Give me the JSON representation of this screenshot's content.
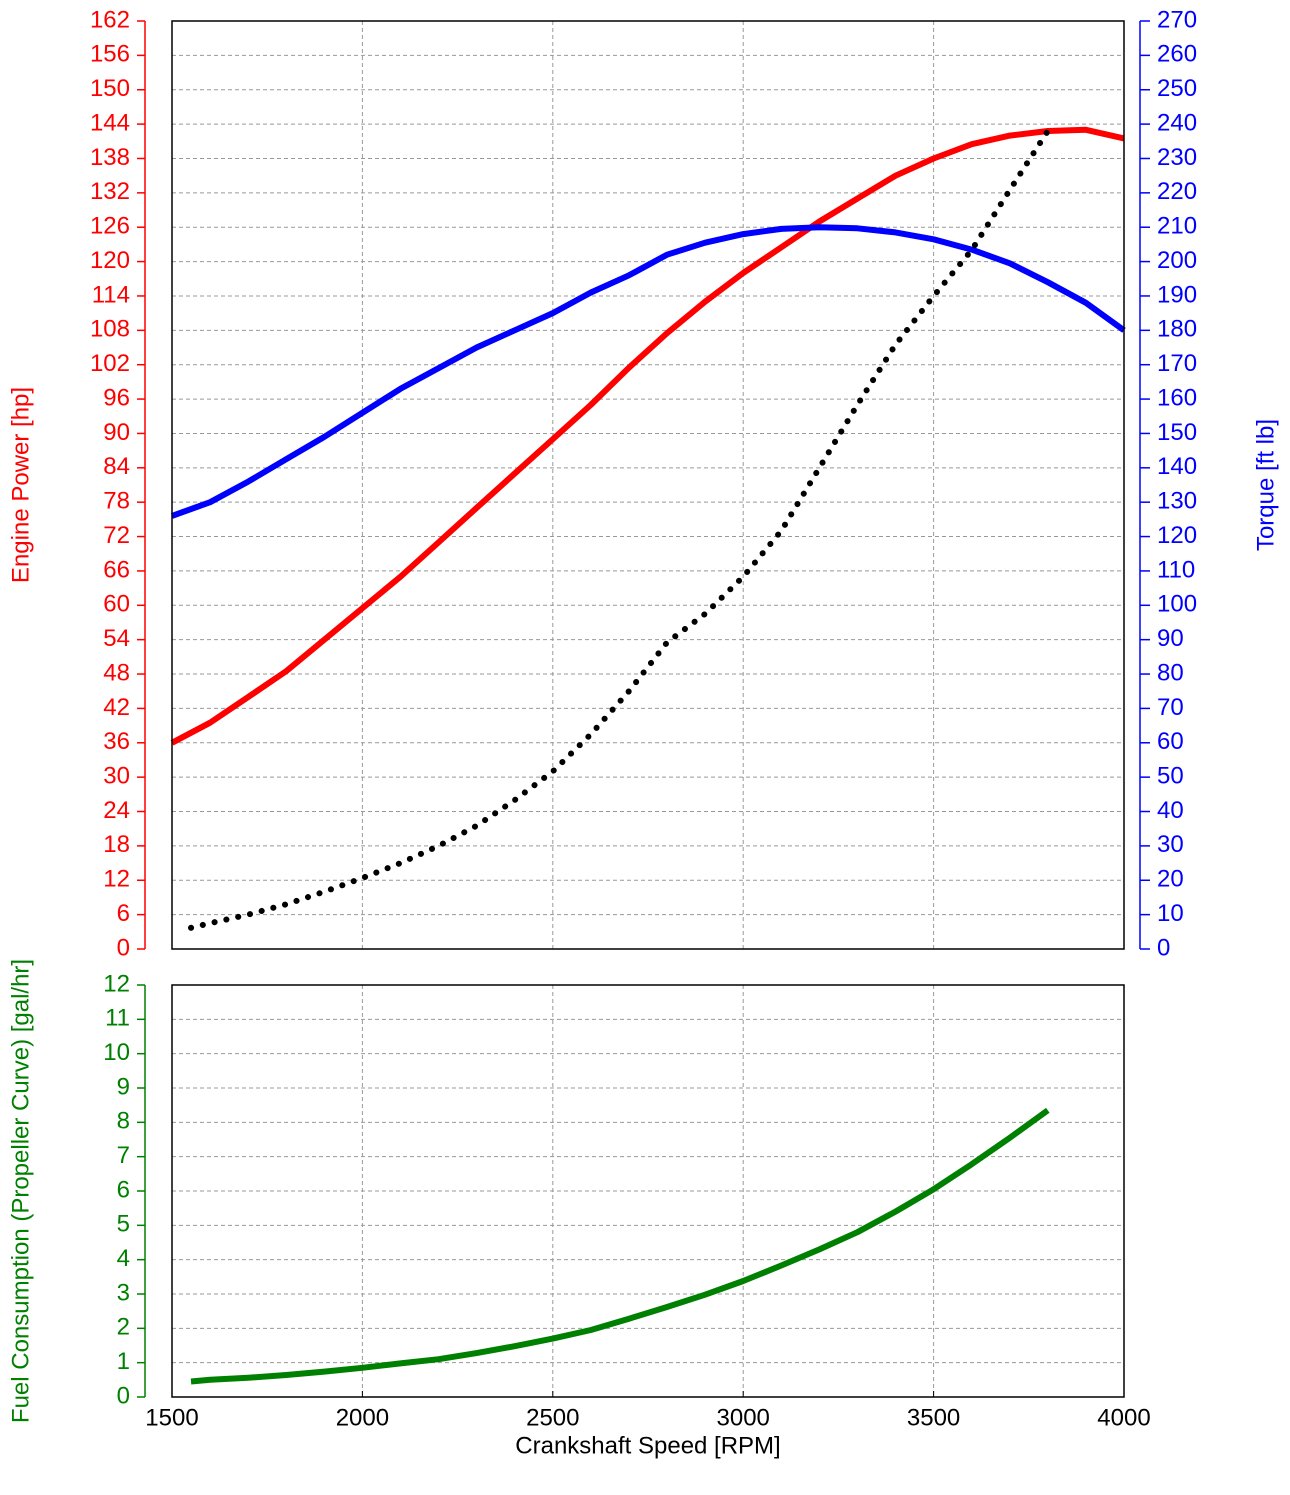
{
  "chart_data": [
    {
      "type": "line",
      "xlim": [
        1500,
        4000
      ],
      "xticks": [
        1500,
        2000,
        2500,
        3000,
        3500,
        4000
      ],
      "ylim": [
        0,
        162
      ],
      "yticks": [
        0,
        6,
        12,
        18,
        24,
        30,
        36,
        42,
        48,
        54,
        60,
        66,
        72,
        78,
        84,
        90,
        96,
        102,
        108,
        114,
        120,
        126,
        132,
        138,
        144,
        150,
        156,
        162
      ],
      "y2lim": [
        0,
        270
      ],
      "y2ticks": [
        0,
        10,
        20,
        30,
        40,
        50,
        60,
        70,
        80,
        90,
        100,
        110,
        120,
        130,
        140,
        150,
        160,
        170,
        180,
        190,
        200,
        210,
        220,
        230,
        240,
        250,
        260,
        270
      ],
      "ylabel": "Engine Power [hp]",
      "ycolor": "#ff0000",
      "y2label": "Torque [ft lb]",
      "y2color": "#0000ff",
      "grid": true,
      "series": [
        {
          "color": "#ff0000",
          "style": "solid",
          "x": [
            1500,
            1600,
            1700,
            1800,
            1900,
            2000,
            2100,
            2200,
            2300,
            2400,
            2500,
            2600,
            2700,
            2800,
            2900,
            3000,
            3100,
            3200,
            3300,
            3400,
            3500,
            3600,
            3700,
            3800,
            3900,
            4000
          ],
          "values": [
            36,
            39.5,
            44,
            48.5,
            54,
            59.5,
            65,
            71,
            77,
            83,
            89,
            95,
            101.5,
            107.5,
            113,
            118,
            122.5,
            127,
            131,
            135,
            138,
            140.5,
            142,
            142.8,
            143,
            141.5
          ]
        },
        {
          "color": "#0000ff",
          "style": "solid",
          "axis": "y2",
          "x": [
            1500,
            1600,
            1700,
            1800,
            1900,
            2000,
            2100,
            2200,
            2300,
            2400,
            2500,
            2600,
            2700,
            2800,
            2900,
            3000,
            3100,
            3200,
            3300,
            3400,
            3500,
            3600,
            3700,
            3800,
            3900,
            4000
          ],
          "values": [
            126,
            130,
            136,
            142.5,
            149,
            156,
            163,
            169,
            175,
            180,
            185,
            191,
            196,
            202,
            205.5,
            208,
            209.5,
            210,
            209.7,
            208.5,
            206.5,
            203.5,
            199.5,
            194,
            188,
            180
          ]
        },
        {
          "color": "#000000",
          "style": "dotted",
          "x": [
            1550,
            1600,
            1700,
            1800,
            1900,
            2000,
            2100,
            2200,
            2300,
            2400,
            2500,
            2600,
            2700,
            2800,
            2900,
            3000,
            3100,
            3200,
            3300,
            3400,
            3500,
            3600,
            3700,
            3800
          ],
          "values": [
            3.7,
            4.5,
            6,
            7.8,
            10,
            12.4,
            15,
            18,
            21.5,
            26,
            31,
            37.5,
            45,
            53.5,
            58.5,
            65,
            73,
            84,
            95,
            105.5,
            114,
            122,
            132.5,
            142.8
          ]
        }
      ]
    },
    {
      "type": "line",
      "xlim": [
        1500,
        4000
      ],
      "xticks": [
        1500,
        2000,
        2500,
        3000,
        3500,
        4000
      ],
      "xlabel": "Crankshaft Speed [RPM]",
      "ylim": [
        0,
        12
      ],
      "yticks": [
        0,
        1,
        2,
        3,
        4,
        5,
        6,
        7,
        8,
        9,
        10,
        11,
        12
      ],
      "ylabel": "Fuel Consumption (Propeller Curve) [gal/hr]",
      "ycolor": "#008000",
      "grid": true,
      "series": [
        {
          "color": "#008000",
          "style": "solid",
          "x": [
            1550,
            1600,
            1700,
            1800,
            1900,
            2000,
            2100,
            2200,
            2300,
            2400,
            2500,
            2600,
            2700,
            2800,
            2900,
            3000,
            3100,
            3200,
            3300,
            3400,
            3500,
            3600,
            3700,
            3800
          ],
          "values": [
            0.45,
            0.5,
            0.56,
            0.64,
            0.74,
            0.85,
            0.98,
            1.1,
            1.28,
            1.48,
            1.7,
            1.95,
            2.28,
            2.62,
            2.98,
            3.38,
            3.83,
            4.3,
            4.8,
            5.4,
            6.05,
            6.78,
            7.55,
            8.35
          ]
        }
      ]
    }
  ]
}
